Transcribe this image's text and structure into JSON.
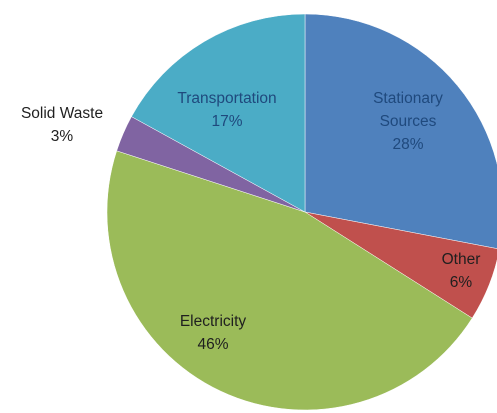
{
  "chart_data": {
    "type": "pie",
    "title": "",
    "start_angle_deg": 0,
    "direction": "clockwise",
    "slices": [
      {
        "label": "Stationary Sources",
        "value": 28,
        "display": "28%",
        "color": "#4F81BD",
        "text_color": "#1F497D"
      },
      {
        "label": "Other",
        "value": 6,
        "display": "6%",
        "color": "#C0504D",
        "text_color": "#1F1F1F"
      },
      {
        "label": "Electricity",
        "value": 46,
        "display": "46%",
        "color": "#9BBB59",
        "text_color": "#1F1F1F"
      },
      {
        "label": "Solid Waste",
        "value": 3,
        "display": "3%",
        "color": "#8064A2",
        "text_color": "#1F1F1F"
      },
      {
        "label": "Transportation",
        "value": 17,
        "display": "17%",
        "color": "#4BACC6",
        "text_color": "#1F497D"
      }
    ]
  }
}
